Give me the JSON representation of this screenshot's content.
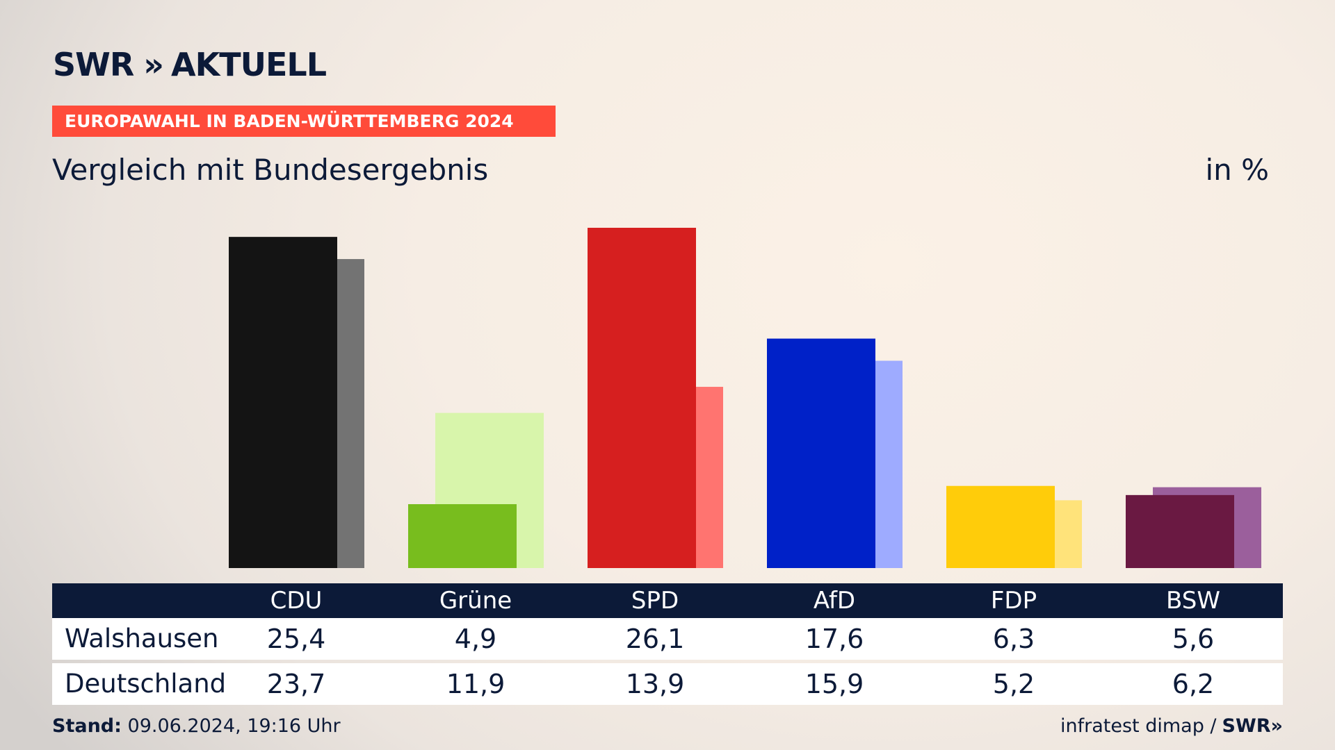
{
  "header": {
    "logo": "SWR",
    "logo_chevrons": "»",
    "logo_suffix": "AKTUELL",
    "banner": "EUROPAWAHL IN BADEN-WÜRTTEMBERG 2024",
    "subtitle": "Vergleich mit Bundesergebnis",
    "unit": "in %"
  },
  "chart_data": {
    "type": "bar",
    "categories": [
      "CDU",
      "Grüne",
      "SPD",
      "AfD",
      "FDP",
      "BSW"
    ],
    "series": [
      {
        "name": "Walshausen",
        "values": [
          25.4,
          4.9,
          26.1,
          17.6,
          6.3,
          5.6
        ],
        "values_text": [
          "25,4",
          "4,9",
          "26,1",
          "17,6",
          "6,3",
          "5,6"
        ],
        "colors": [
          "#141414",
          "#78bd1e",
          "#d61f1f",
          "#0021c8",
          "#ffcc0a",
          "#6a1942"
        ]
      },
      {
        "name": "Deutschland",
        "values": [
          23.7,
          11.9,
          13.9,
          15.9,
          5.2,
          6.2
        ],
        "values_text": [
          "23,7",
          "11,9",
          "13,9",
          "15,9",
          "5,2",
          "6,2"
        ],
        "colors": [
          "#737373",
          "#d8f5ab",
          "#ff7470",
          "#9eabff",
          "#ffe37a",
          "#9b5f9c"
        ]
      }
    ],
    "ylim": [
      0,
      26.1
    ],
    "grid": false
  },
  "table": {
    "headers": [
      "CDU",
      "Grüne",
      "SPD",
      "AfD",
      "FDP",
      "BSW"
    ],
    "rows": [
      {
        "label": "Walshausen",
        "values": [
          "25,4",
          "4,9",
          "26,1",
          "17,6",
          "6,3",
          "5,6"
        ]
      },
      {
        "label": "Deutschland",
        "values": [
          "23,7",
          "11,9",
          "13,9",
          "15,9",
          "5,2",
          "6,2"
        ]
      }
    ]
  },
  "footer": {
    "stand_label": "Stand:",
    "stand_value": "09.06.2024, 19:16 Uhr",
    "source": "infratest dimap /",
    "source_logo": "SWR»"
  }
}
